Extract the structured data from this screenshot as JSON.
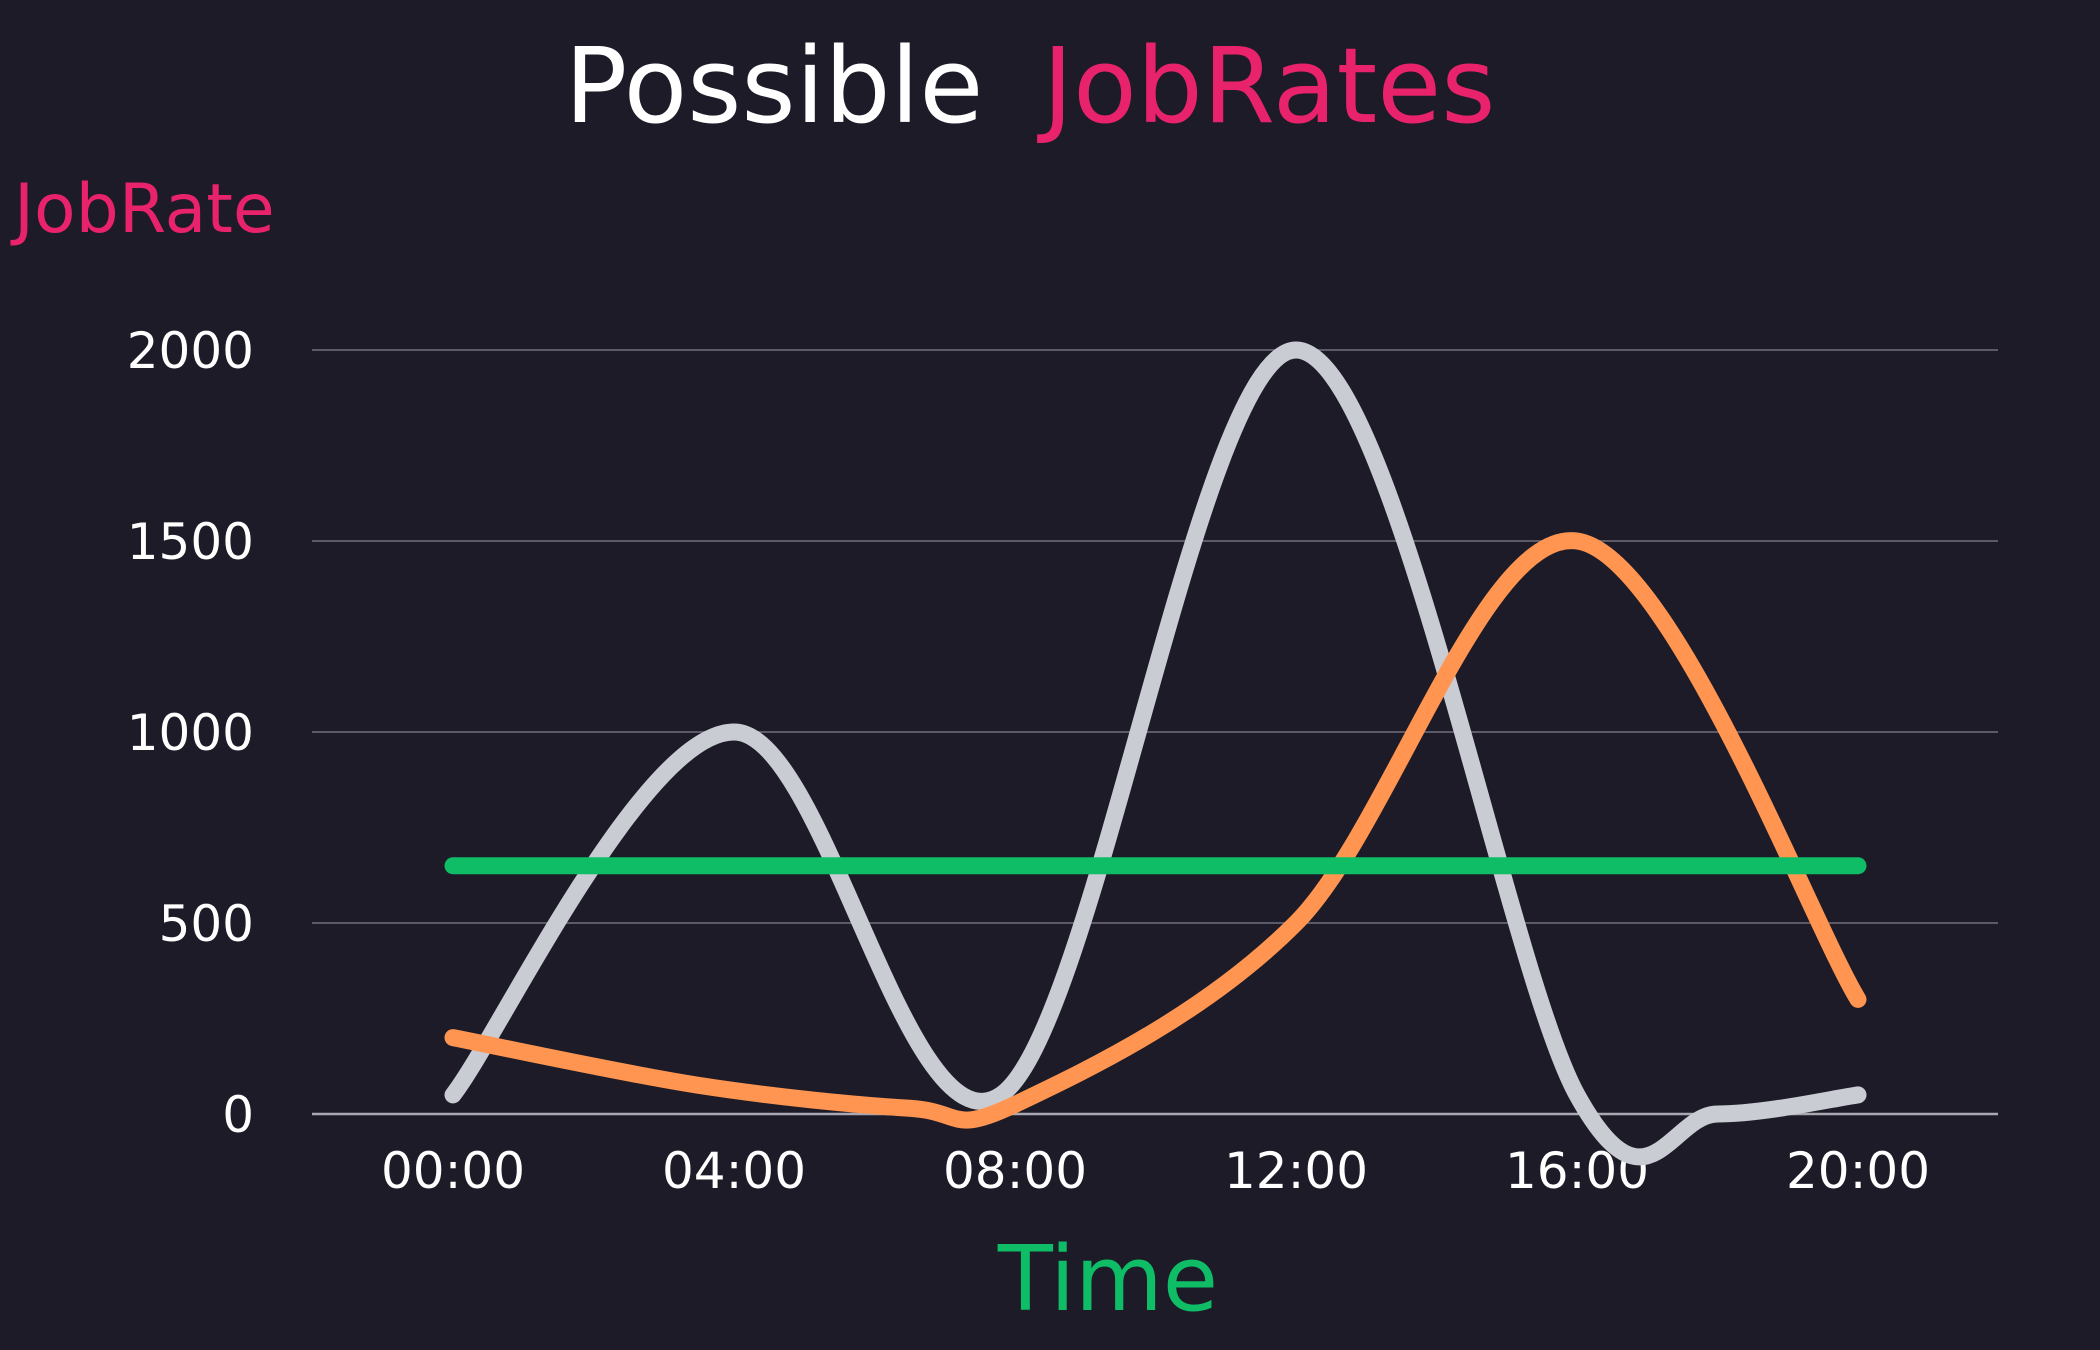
{
  "chart_data": {
    "type": "line",
    "title": {
      "prefix": "Possible",
      "highlight": "JobRates"
    },
    "ylabel": "JobRate",
    "xlabel": "Time",
    "categories": [
      "00:00",
      "04:00",
      "08:00",
      "12:00",
      "16:00",
      "20:00"
    ],
    "y_ticks": [
      "0",
      "500",
      "1000",
      "1500",
      "2000"
    ],
    "ylim": [
      0,
      2000
    ],
    "grid": true,
    "series": [
      {
        "key": "gray",
        "color": "#c9ccd3",
        "values": [
          50,
          1000,
          50,
          2000,
          50,
          50
        ],
        "points": [
          [
            0,
            50
          ],
          [
            4,
            1000
          ],
          [
            7.8,
            50
          ],
          [
            12,
            2000
          ],
          [
            16,
            50
          ],
          [
            18,
            0
          ],
          [
            20,
            50
          ]
        ]
      },
      {
        "key": "orange",
        "color": "#ff9551",
        "values": [
          200,
          75,
          25,
          500,
          1500,
          300
        ],
        "points": [
          [
            0,
            200
          ],
          [
            3.5,
            75
          ],
          [
            6.5,
            15
          ],
          [
            8,
            25
          ],
          [
            12,
            500
          ],
          [
            16,
            1500
          ],
          [
            20,
            300
          ]
        ]
      },
      {
        "key": "green",
        "color": "#0ebd66",
        "values": [
          650,
          650,
          650,
          650,
          650,
          650
        ],
        "points": [
          [
            0,
            650
          ],
          [
            20,
            650
          ]
        ]
      }
    ],
    "colors": {
      "background": "#1c1b27",
      "title": "#ffffff",
      "title_highlight": "#e8236c",
      "ylabel": "#e8236c",
      "xlabel": "#0ebd66",
      "tick_text": "#ffffff",
      "grid": "#5b5a66",
      "baseline": "#a9a8b1"
    }
  }
}
